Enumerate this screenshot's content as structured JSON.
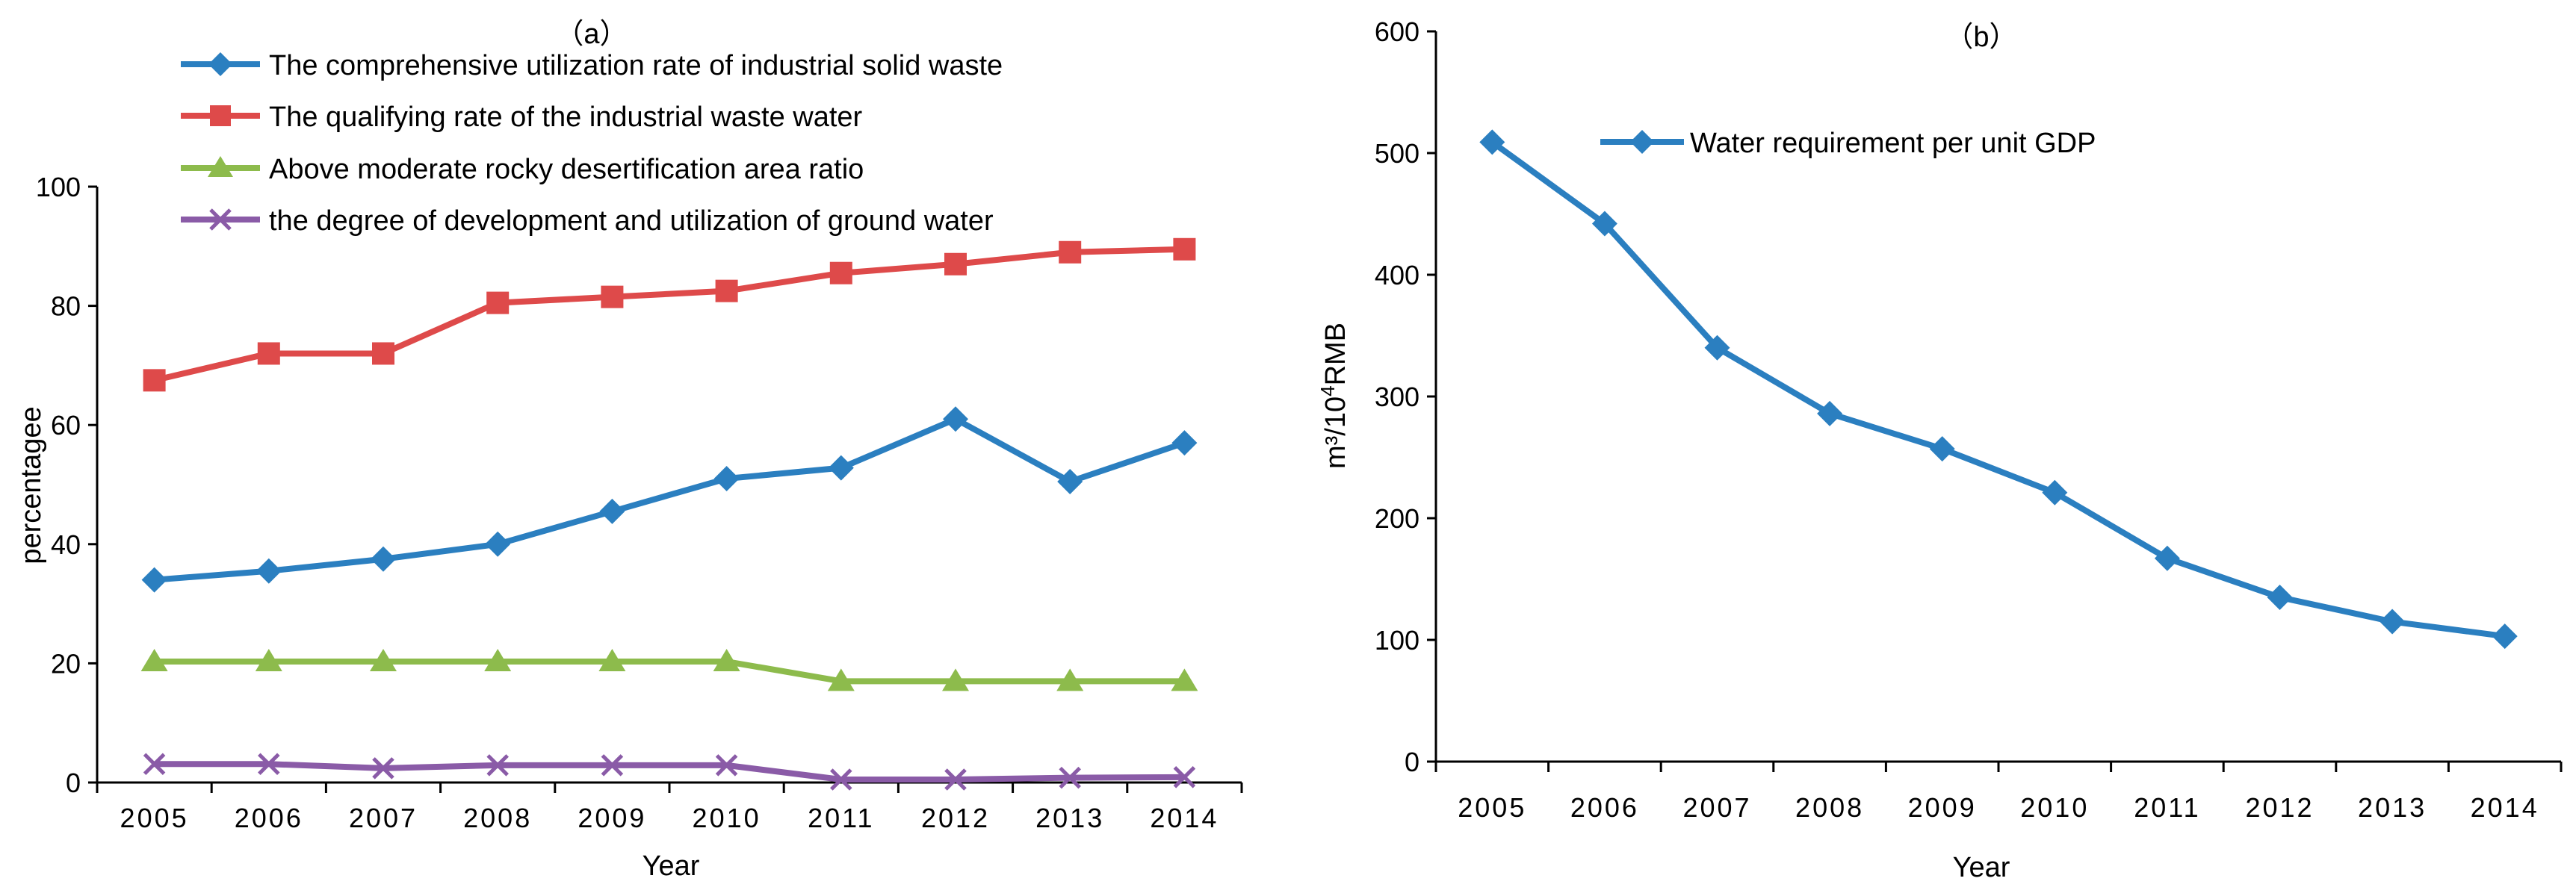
{
  "chart_data": [
    {
      "type": "line",
      "title": "（a）",
      "xlabel": "Year",
      "ylabel": "percentagee",
      "ylim": [
        0,
        100
      ],
      "yticks": [
        0,
        20,
        40,
        60,
        80,
        100
      ],
      "categories": [
        "2005",
        "2006",
        "2007",
        "2008",
        "2009",
        "2010",
        "2011",
        "2012",
        "2013",
        "2014"
      ],
      "series": [
        {
          "name": "The comprehensive utilization rate of industrial solid waste",
          "color": "#2b7fc0",
          "marker": "diamond",
          "values": [
            34,
            35.5,
            37.5,
            40,
            45.5,
            51,
            52.8,
            61,
            50.5,
            57
          ]
        },
        {
          "name": "The qualifying rate of the industrial waste water",
          "color": "#de4a4a",
          "marker": "square",
          "values": [
            67.5,
            72,
            72,
            80.5,
            81.5,
            82.5,
            85.5,
            87,
            89,
            89.5
          ]
        },
        {
          "name": "Above moderate rocky desertification area ratio",
          "color": "#8dbb4c",
          "marker": "triangle",
          "values": [
            20.3,
            20.3,
            20.3,
            20.3,
            20.3,
            20.3,
            17,
            17,
            17,
            17
          ]
        },
        {
          "name": "the degree of development and utilization of ground water",
          "color": "#8a5ba7",
          "marker": "x",
          "values": [
            3.1,
            3.1,
            2.4,
            2.9,
            2.9,
            2.9,
            0.5,
            0.5,
            0.8,
            0.9
          ]
        }
      ]
    },
    {
      "type": "line",
      "title": "（b）",
      "xlabel": "Year",
      "ylabel_main": "m³/10",
      "ylabel_sup": "4",
      "ylabel_tail": "RMB",
      "ylim": [
        0,
        600
      ],
      "yticks": [
        0,
        100,
        200,
        300,
        400,
        500,
        600
      ],
      "categories": [
        "2005",
        "2006",
        "2007",
        "2008",
        "2009",
        "2010",
        "2011",
        "2012",
        "2013",
        "2014"
      ],
      "series": [
        {
          "name": "Water requirement per unit GDP",
          "color": "#2b7fc0",
          "marker": "diamond",
          "values": [
            509,
            442,
            340,
            286,
            257,
            221,
            167,
            135,
            115,
            103
          ]
        }
      ]
    }
  ]
}
